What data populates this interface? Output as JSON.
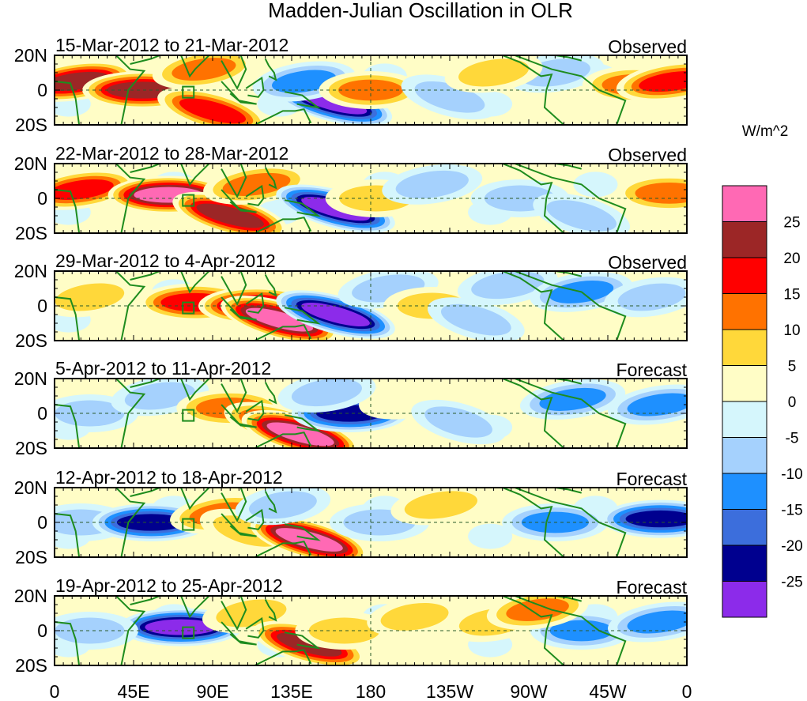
{
  "chart_data": {
    "type": "heatmap",
    "title": "Madden-Julian Oscillation in OLR",
    "units_label": "W/m^2",
    "x_tick_labels": [
      "0",
      "45E",
      "90E",
      "135E",
      "180",
      "135W",
      "90W",
      "45W",
      "0"
    ],
    "y_tick_labels": [
      "20N",
      "0",
      "20S"
    ],
    "xlim": [
      0,
      360
    ],
    "ylim": [
      -20,
      20
    ],
    "colorbar": {
      "tick_labels": [
        "25",
        "20",
        "15",
        "10",
        "5",
        "0",
        "-5",
        "-10",
        "-15",
        "-20",
        "-25"
      ],
      "levels": [
        25,
        20,
        15,
        10,
        5,
        0,
        -5,
        -10,
        -15,
        -20,
        -25
      ],
      "colors": [
        "#ff69b4",
        "#9c2626",
        "#ff0000",
        "#ff7200",
        "#ffd83a",
        "#fffdc6",
        "#d5f6fc",
        "#a5d1fd",
        "#1e90ff",
        "#3c6edc",
        "#00008f",
        "#8c2bea"
      ]
    },
    "panels": [
      {
        "period": "15-Mar-2012 to 21-Mar-2012",
        "kind": "Observed",
        "blobs": [
          {
            "lon": 12,
            "lat": 5,
            "v": 22
          },
          {
            "lon": 50,
            "lat": 0,
            "v": 25
          },
          {
            "lon": 90,
            "lat": -12,
            "v": 20
          },
          {
            "lon": 85,
            "lat": 12,
            "v": 12
          },
          {
            "lon": 158,
            "lat": -7,
            "v": -28
          },
          {
            "lon": 142,
            "lat": 5,
            "v": -12
          },
          {
            "lon": 180,
            "lat": 0,
            "v": 12
          },
          {
            "lon": 225,
            "lat": -4,
            "v": -9
          },
          {
            "lon": 285,
            "lat": 10,
            "v": -8
          },
          {
            "lon": 330,
            "lat": 3,
            "v": 12
          },
          {
            "lon": 352,
            "lat": 5,
            "v": 20
          },
          {
            "lon": 250,
            "lat": 10,
            "v": 8
          }
        ]
      },
      {
        "period": "22-Mar-2012 to 28-Mar-2012",
        "kind": "Observed",
        "blobs": [
          {
            "lon": 15,
            "lat": 5,
            "v": 18
          },
          {
            "lon": 65,
            "lat": 2,
            "v": 26
          },
          {
            "lon": 100,
            "lat": -10,
            "v": 24
          },
          {
            "lon": 115,
            "lat": 8,
            "v": 15
          },
          {
            "lon": 160,
            "lat": -6,
            "v": -27
          },
          {
            "lon": 183,
            "lat": 0,
            "v": 10
          },
          {
            "lon": 215,
            "lat": 8,
            "v": -10
          },
          {
            "lon": 265,
            "lat": 0,
            "v": -8
          },
          {
            "lon": 300,
            "lat": -10,
            "v": -9
          },
          {
            "lon": 350,
            "lat": 3,
            "v": 15
          }
        ]
      },
      {
        "period": "29-Mar-2012 to 4-Apr-2012",
        "kind": "Observed",
        "blobs": [
          {
            "lon": 20,
            "lat": 5,
            "v": 7
          },
          {
            "lon": 80,
            "lat": 2,
            "v": 20
          },
          {
            "lon": 115,
            "lat": 0,
            "v": 22
          },
          {
            "lon": 128,
            "lat": -8,
            "v": 26
          },
          {
            "lon": 160,
            "lat": -5,
            "v": -27
          },
          {
            "lon": 190,
            "lat": 10,
            "v": -10
          },
          {
            "lon": 215,
            "lat": 0,
            "v": 7
          },
          {
            "lon": 240,
            "lat": -8,
            "v": -9
          },
          {
            "lon": 258,
            "lat": 12,
            "v": -10
          },
          {
            "lon": 300,
            "lat": 8,
            "v": -12
          },
          {
            "lon": 340,
            "lat": 5,
            "v": -6
          }
        ]
      },
      {
        "period": "5-Apr-2012 to 11-Apr-2012",
        "kind": "Forecast",
        "blobs": [
          {
            "lon": 20,
            "lat": 0,
            "v": -7
          },
          {
            "lon": 60,
            "lat": 10,
            "v": -8
          },
          {
            "lon": 100,
            "lat": 3,
            "v": 15
          },
          {
            "lon": 128,
            "lat": -7,
            "v": 20
          },
          {
            "lon": 140,
            "lat": -12,
            "v": 26
          },
          {
            "lon": 168,
            "lat": 0,
            "v": -22
          },
          {
            "lon": 200,
            "lat": 8,
            "v": 5
          },
          {
            "lon": 230,
            "lat": -5,
            "v": -7
          },
          {
            "lon": 295,
            "lat": 8,
            "v": -14
          },
          {
            "lon": 345,
            "lat": 5,
            "v": -14
          },
          {
            "lon": 155,
            "lat": 12,
            "v": -8
          }
        ]
      },
      {
        "period": "12-Apr-2012 to 18-Apr-2012",
        "kind": "Forecast",
        "blobs": [
          {
            "lon": 15,
            "lat": 0,
            "v": -8
          },
          {
            "lon": 55,
            "lat": 0,
            "v": -23
          },
          {
            "lon": 95,
            "lat": 5,
            "v": 12
          },
          {
            "lon": 110,
            "lat": -5,
            "v": 8
          },
          {
            "lon": 145,
            "lat": -10,
            "v": 26
          },
          {
            "lon": 130,
            "lat": 10,
            "v": -6
          },
          {
            "lon": 185,
            "lat": 0,
            "v": -9
          },
          {
            "lon": 220,
            "lat": 10,
            "v": 10
          },
          {
            "lon": 285,
            "lat": 0,
            "v": -14
          },
          {
            "lon": 345,
            "lat": 2,
            "v": -24
          }
        ]
      },
      {
        "period": "19-Apr-2012 to 25-Apr-2012",
        "kind": "Forecast",
        "blobs": [
          {
            "lon": 72,
            "lat": 2,
            "v": -28
          },
          {
            "lon": 20,
            "lat": 0,
            "v": -7
          },
          {
            "lon": 112,
            "lat": 10,
            "v": 8
          },
          {
            "lon": 145,
            "lat": -8,
            "v": 22
          },
          {
            "lon": 165,
            "lat": 0,
            "v": 8
          },
          {
            "lon": 205,
            "lat": 8,
            "v": 6
          },
          {
            "lon": 250,
            "lat": 5,
            "v": 7
          },
          {
            "lon": 300,
            "lat": 0,
            "v": -11
          },
          {
            "lon": 345,
            "lat": 5,
            "v": -14
          },
          {
            "lon": 275,
            "lat": 12,
            "v": 11
          }
        ]
      }
    ]
  }
}
